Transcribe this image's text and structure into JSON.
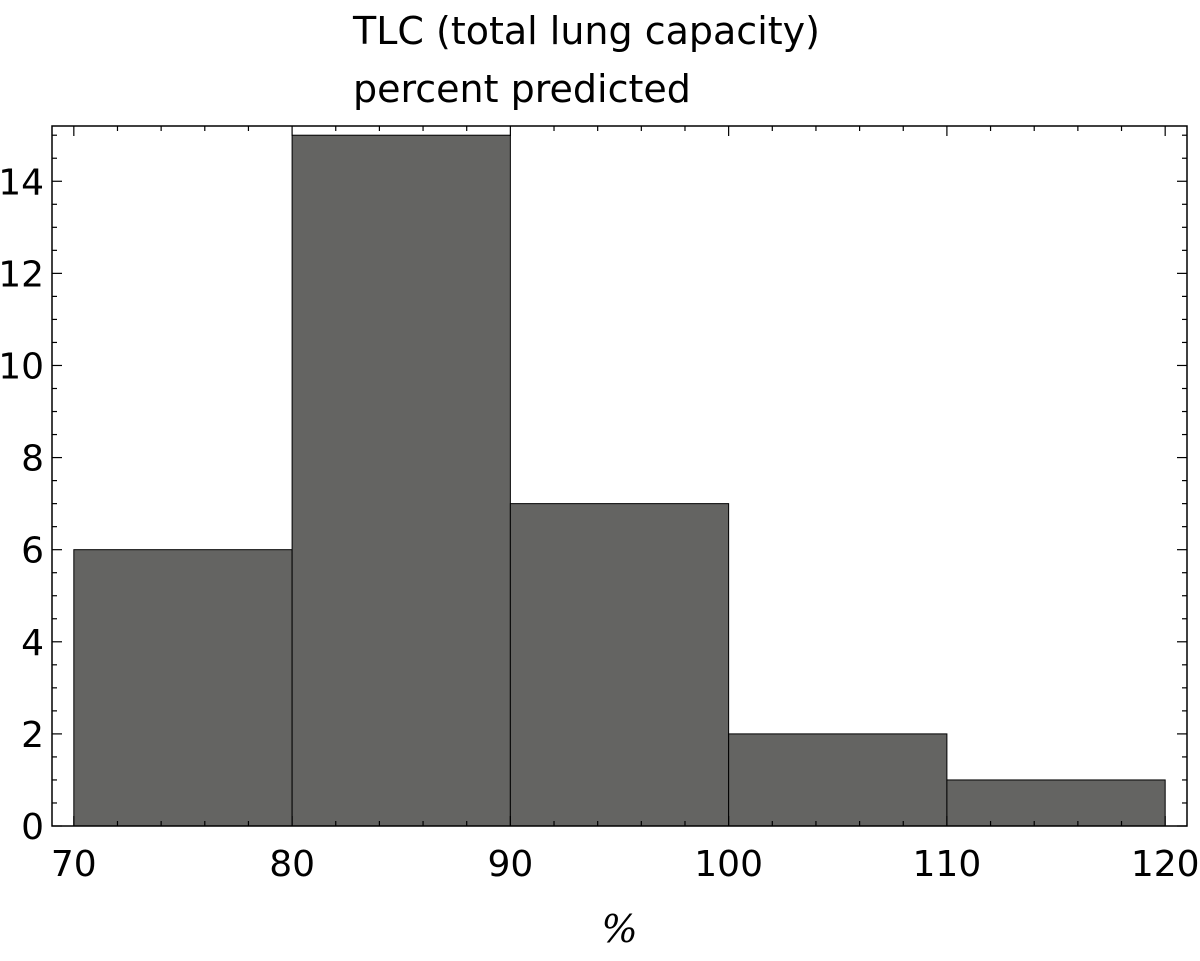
{
  "chart_data": {
    "type": "bar",
    "title_lines": [
      "TLC (total lung capacity)",
      "percent predicted"
    ],
    "xlabel": "%",
    "ylabel": "",
    "bins": [
      {
        "from": 70,
        "to": 80,
        "count": 6
      },
      {
        "from": 80,
        "to": 90,
        "count": 15
      },
      {
        "from": 90,
        "to": 100,
        "count": 7
      },
      {
        "from": 100,
        "to": 110,
        "count": 2
      },
      {
        "from": 110,
        "to": 120,
        "count": 1
      }
    ],
    "xlim": [
      69,
      121
    ],
    "ylim": [
      0,
      15.2
    ],
    "x_ticks": [
      70,
      80,
      90,
      100,
      110,
      120
    ],
    "y_ticks": [
      0,
      2,
      4,
      6,
      8,
      10,
      12,
      14
    ],
    "grid": false,
    "bar_color": "#646462"
  }
}
